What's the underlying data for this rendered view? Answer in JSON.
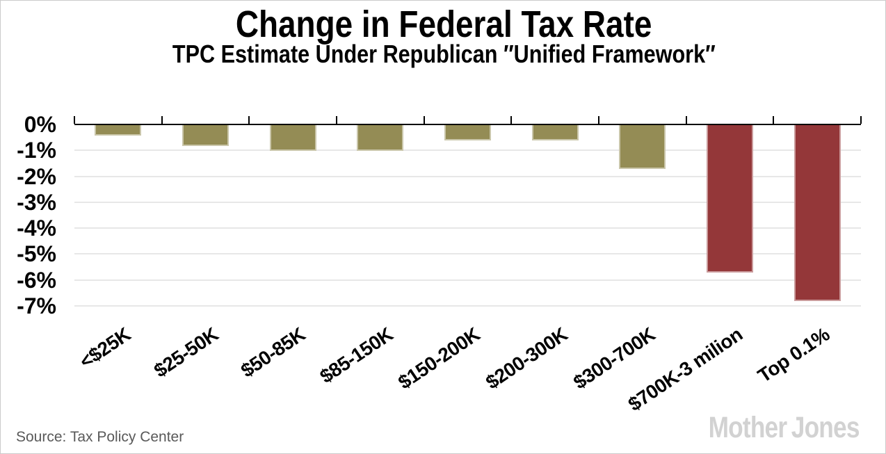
{
  "chart_data": {
    "type": "bar",
    "title": "Change in Federal Tax Rate",
    "subtitle": "TPC Estimate Under Republican ″Unified Framework″",
    "categories": [
      "<$25K",
      "$25-50K",
      "$50-85K",
      "$85-150K",
      "$150-200K",
      "$200-300K",
      "$300-700K",
      "$700K-3 milion",
      "Top 0.1%"
    ],
    "values": [
      -0.4,
      -0.8,
      -1.0,
      -1.0,
      -0.6,
      -0.6,
      -1.7,
      -5.7,
      -6.8
    ],
    "unit": "percent",
    "ylim": [
      -7,
      0
    ],
    "y_tick_labels": [
      "0%",
      "-1%",
      "-2%",
      "-3%",
      "-4%",
      "-5%",
      "-6%",
      "-7%"
    ],
    "grid": true,
    "legend": "none",
    "bar_colors": [
      "#948C55",
      "#948C55",
      "#948C55",
      "#948C55",
      "#948C55",
      "#948C55",
      "#948C55",
      "#943739",
      "#943739"
    ],
    "source": "Source: Tax Policy Center"
  },
  "branding": {
    "mother": "Mother",
    "jones": "Jones"
  },
  "colors": {
    "bar_olive": "#948C55",
    "bar_red": "#943739",
    "gridline": "#e7e7e7",
    "axis": "#000000",
    "source_text": "#595959",
    "brand": "#d2d2d2",
    "frame_border": "#cbcbcb",
    "background": "#ffffff"
  }
}
